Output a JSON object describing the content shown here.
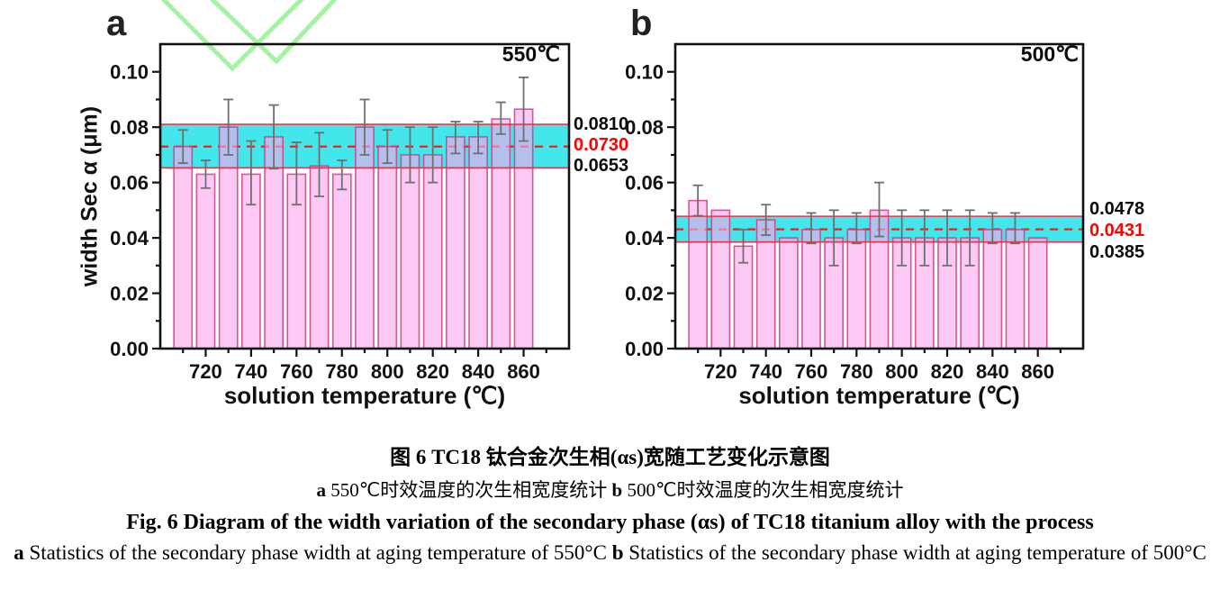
{
  "colors": {
    "bar_fill": "rgba(250,168,238,0.62)",
    "bar_stroke": "rgba(205,62,134,0.85)",
    "band_fill": "#43E6EA",
    "band_edge": "#E8354B",
    "mean_line": "#FF1111",
    "error_bar": "#6F6F6F",
    "axis": "#111111",
    "annotation_red": "#FF0000",
    "watermark_green": "#A5F2A5"
  },
  "chart_data": [
    {
      "type": "bar",
      "panel_label": "a",
      "corner_label": "550℃",
      "xlabel": "solution temperature (℃)",
      "ylabel": "width Sec α (μm)",
      "xlim": [
        700,
        880
      ],
      "ylim": [
        0,
        0.11
      ],
      "x_major_ticks": [
        720,
        740,
        760,
        780,
        800,
        820,
        840,
        860
      ],
      "x_minor_step": 10,
      "y_major_step": 0.02,
      "y_minor_step": 0.01,
      "x": [
        710,
        720,
        730,
        740,
        750,
        760,
        770,
        780,
        790,
        800,
        810,
        820,
        830,
        840,
        850,
        860
      ],
      "values": [
        0.073,
        0.063,
        0.08,
        0.063,
        0.0765,
        0.063,
        0.066,
        0.063,
        0.08,
        0.073,
        0.07,
        0.07,
        0.0765,
        0.0765,
        0.083,
        0.0865
      ],
      "error_low": [
        0.067,
        0.058,
        0.07,
        0.052,
        0.065,
        0.052,
        0.055,
        0.0575,
        0.07,
        0.067,
        0.06,
        0.06,
        0.0705,
        0.0705,
        0.0775,
        0.075
      ],
      "error_high": [
        0.079,
        0.068,
        0.09,
        0.075,
        0.088,
        0.0745,
        0.078,
        0.068,
        0.09,
        0.079,
        0.08,
        0.08,
        0.082,
        0.082,
        0.089,
        0.098
      ],
      "band": {
        "low": 0.0653,
        "high": 0.081,
        "mean": 0.073,
        "label_high": "0.0810",
        "label_mean": "0.0730",
        "label_low": "0.0653"
      }
    },
    {
      "type": "bar",
      "panel_label": "b",
      "corner_label": "500℃",
      "xlabel": "solution temperature (℃)",
      "ylabel": "",
      "xlim": [
        700,
        880
      ],
      "ylim": [
        0,
        0.11
      ],
      "x_major_ticks": [
        720,
        740,
        760,
        780,
        800,
        820,
        840,
        860
      ],
      "x_minor_step": 10,
      "y_major_step": 0.02,
      "y_minor_step": 0.01,
      "x": [
        710,
        720,
        730,
        740,
        750,
        760,
        770,
        780,
        790,
        800,
        810,
        820,
        830,
        840,
        850,
        860
      ],
      "values": [
        0.0535,
        0.05,
        0.037,
        0.0465,
        0.04,
        0.043,
        0.04,
        0.043,
        0.05,
        0.04,
        0.04,
        0.04,
        0.04,
        0.043,
        0.043,
        0.04
      ],
      "error_low": [
        0.048,
        null,
        0.031,
        0.041,
        null,
        0.038,
        0.03,
        0.038,
        0.0405,
        0.03,
        0.03,
        0.03,
        0.03,
        0.038,
        0.038,
        null
      ],
      "error_high": [
        0.059,
        null,
        0.043,
        0.052,
        null,
        0.049,
        0.05,
        0.049,
        0.06,
        0.05,
        0.05,
        0.05,
        0.05,
        0.049,
        0.049,
        null
      ],
      "band": {
        "low": 0.0385,
        "high": 0.0478,
        "mean": 0.0431,
        "label_high": "0.0478",
        "label_mean": "0.0431",
        "label_low": "0.0385"
      }
    }
  ],
  "caption": {
    "title_zh": "图 6 TC18 钛合金次生相(αs)宽随工艺变化示意图",
    "subtitle_zh_segments": [
      {
        "t": "a ",
        "b": true
      },
      {
        "t": "550℃时效温度的次生相宽度统计  ",
        "b": false
      },
      {
        "t": "b ",
        "b": true
      },
      {
        "t": "500℃时效温度的次生相宽度统计",
        "b": false
      }
    ],
    "title_en": "Fig. 6 Diagram of the width variation of the secondary phase (αs) of TC18 titanium alloy with the process",
    "subtitle_en_segments": [
      {
        "t": "a ",
        "b": true
      },
      {
        "t": "Statistics of the secondary phase width at aging temperature of 550°C ",
        "b": false
      },
      {
        "t": "b ",
        "b": true
      },
      {
        "t": "Statistics of the secondary phase width at aging temperature of 500°C",
        "b": false
      }
    ]
  }
}
